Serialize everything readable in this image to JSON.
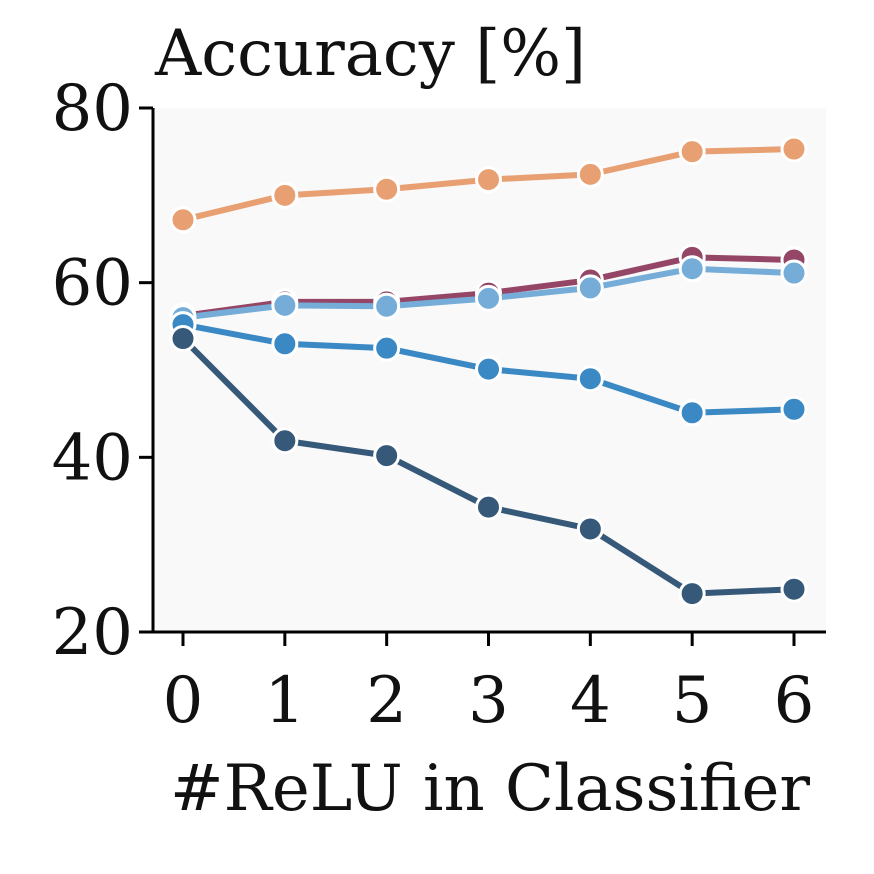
{
  "chart_data": {
    "type": "line",
    "title": "Accuracy [%]",
    "xlabel": "#ReLU in Classifier",
    "ylabel": "",
    "x": [
      0,
      1,
      2,
      3,
      4,
      5,
      6
    ],
    "x_ticks": [
      "0",
      "1",
      "2",
      "3",
      "4",
      "5",
      "6"
    ],
    "ylim": [
      20,
      80
    ],
    "y_ticks": [
      "20",
      "40",
      "60",
      "80"
    ],
    "grid": false,
    "legend": "none",
    "background": "#f9f9f9",
    "series": [
      {
        "color": "#e8a073",
        "values": [
          67.2,
          70.0,
          70.7,
          71.8,
          72.4,
          75.0,
          75.3
        ]
      },
      {
        "color": "#954667",
        "values": [
          56.2,
          57.8,
          57.8,
          58.8,
          60.3,
          62.9,
          62.6
        ]
      },
      {
        "color": "#75add8",
        "values": [
          56.0,
          57.4,
          57.3,
          58.2,
          59.4,
          61.6,
          61.1
        ]
      },
      {
        "color": "#3a89c5",
        "values": [
          55.2,
          53.0,
          52.5,
          50.1,
          49.0,
          45.1,
          45.5
        ]
      },
      {
        "color": "#36597a",
        "values": [
          53.6,
          41.9,
          40.2,
          34.3,
          31.8,
          24.4,
          24.9
        ]
      }
    ]
  }
}
